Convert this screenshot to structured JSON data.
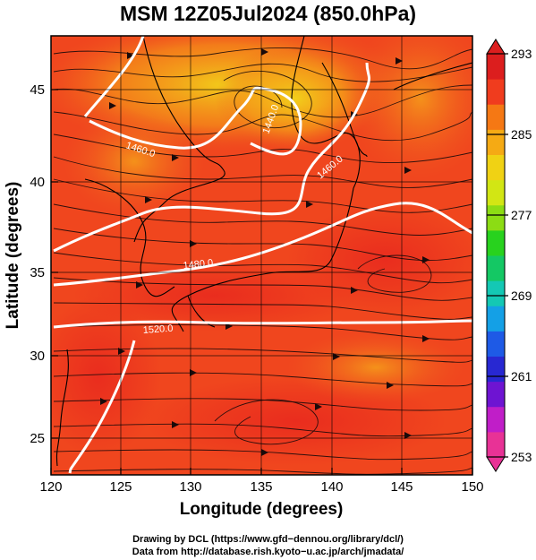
{
  "title": "MSM 12Z05Jul2024 (850.0hPa)",
  "map": {
    "x_axis": {
      "label": "Longitude (degrees)",
      "range": [
        120,
        150
      ],
      "ticks": [
        120,
        125,
        130,
        135,
        140,
        145,
        150
      ],
      "tick_labels": [
        "120",
        "125",
        "130",
        "135",
        "140",
        "145",
        "150"
      ]
    },
    "y_axis": {
      "label": "Latitude (degrees)",
      "range": [
        22.5,
        47.6
      ],
      "ticks": [
        25,
        30,
        35,
        40,
        45
      ],
      "tick_labels": [
        "25",
        "30",
        "35",
        "40",
        "45"
      ]
    },
    "grid": true,
    "field": "temperature shading with streamlines and geopotential height contours",
    "contour_labels": [
      {
        "text": "1460.0",
        "lon": 128.0,
        "lat": 41.3
      },
      {
        "text": "1440.0",
        "lon": 136.2,
        "lat": 42.8
      },
      {
        "text": "1460.0",
        "lon": 138.8,
        "lat": 40.6
      },
      {
        "text": "1480.0",
        "lon": 131.0,
        "lat": 35.3
      },
      {
        "text": "1520.0",
        "lon": 131.0,
        "lat": 31.6
      }
    ]
  },
  "colorbar": {
    "min": 253,
    "max": 293,
    "tick_labels": [
      "293",
      "285",
      "277",
      "269",
      "261",
      "253"
    ],
    "colors": [
      "#e83296",
      "#c01ec8",
      "#6e14d2",
      "#2828d2",
      "#1e5ae6",
      "#14a0e6",
      "#14c8b4",
      "#14c864",
      "#28d21e",
      "#8cdc14",
      "#d2e614",
      "#f0d214",
      "#f5aa14",
      "#f57814",
      "#f03c1e",
      "#dc1e1e"
    ]
  },
  "credits": {
    "line1": "Drawing by DCL (https://www.gfd−dennou.org/library/dcl/)",
    "line2": "Data from http://database.rish.kyoto−u.ac.jp/arch/jmadata/"
  }
}
